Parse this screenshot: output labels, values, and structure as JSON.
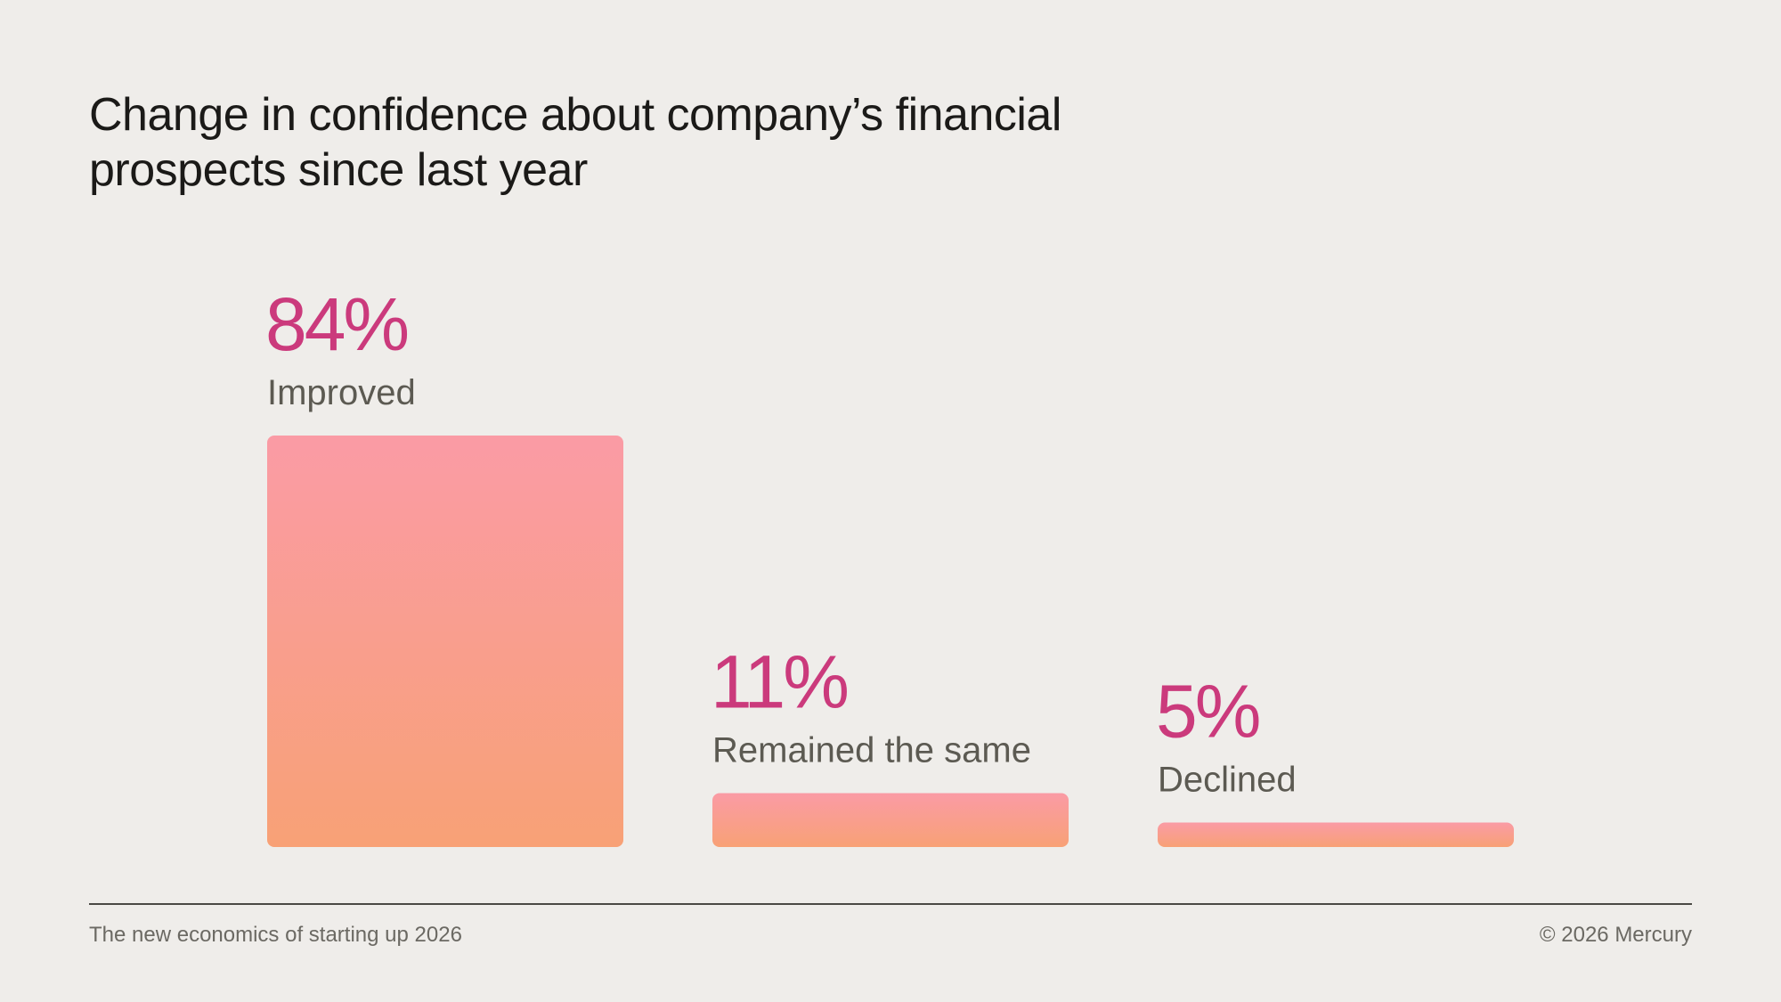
{
  "title": "Change in confidence about company’s financial prospects since last year",
  "chart_data": {
    "type": "bar",
    "categories": [
      "Improved",
      "Remained the same",
      "Declined"
    ],
    "values": [
      84,
      11,
      5
    ],
    "value_labels": [
      "84%",
      "11%",
      "5%"
    ],
    "unit": "%",
    "ylim": [
      0,
      84
    ],
    "grid": false,
    "legend": "none",
    "xlabel": "",
    "ylabel": "",
    "colors": {
      "bar_gradient_top": "#fa9ba5",
      "bar_gradient_bottom": "#f8a176",
      "value_label": "#cb3a7c",
      "category_label": "#5c5a52"
    }
  },
  "footer": {
    "left": "The new economics of starting up 2026",
    "right": "© 2026 Mercury"
  }
}
